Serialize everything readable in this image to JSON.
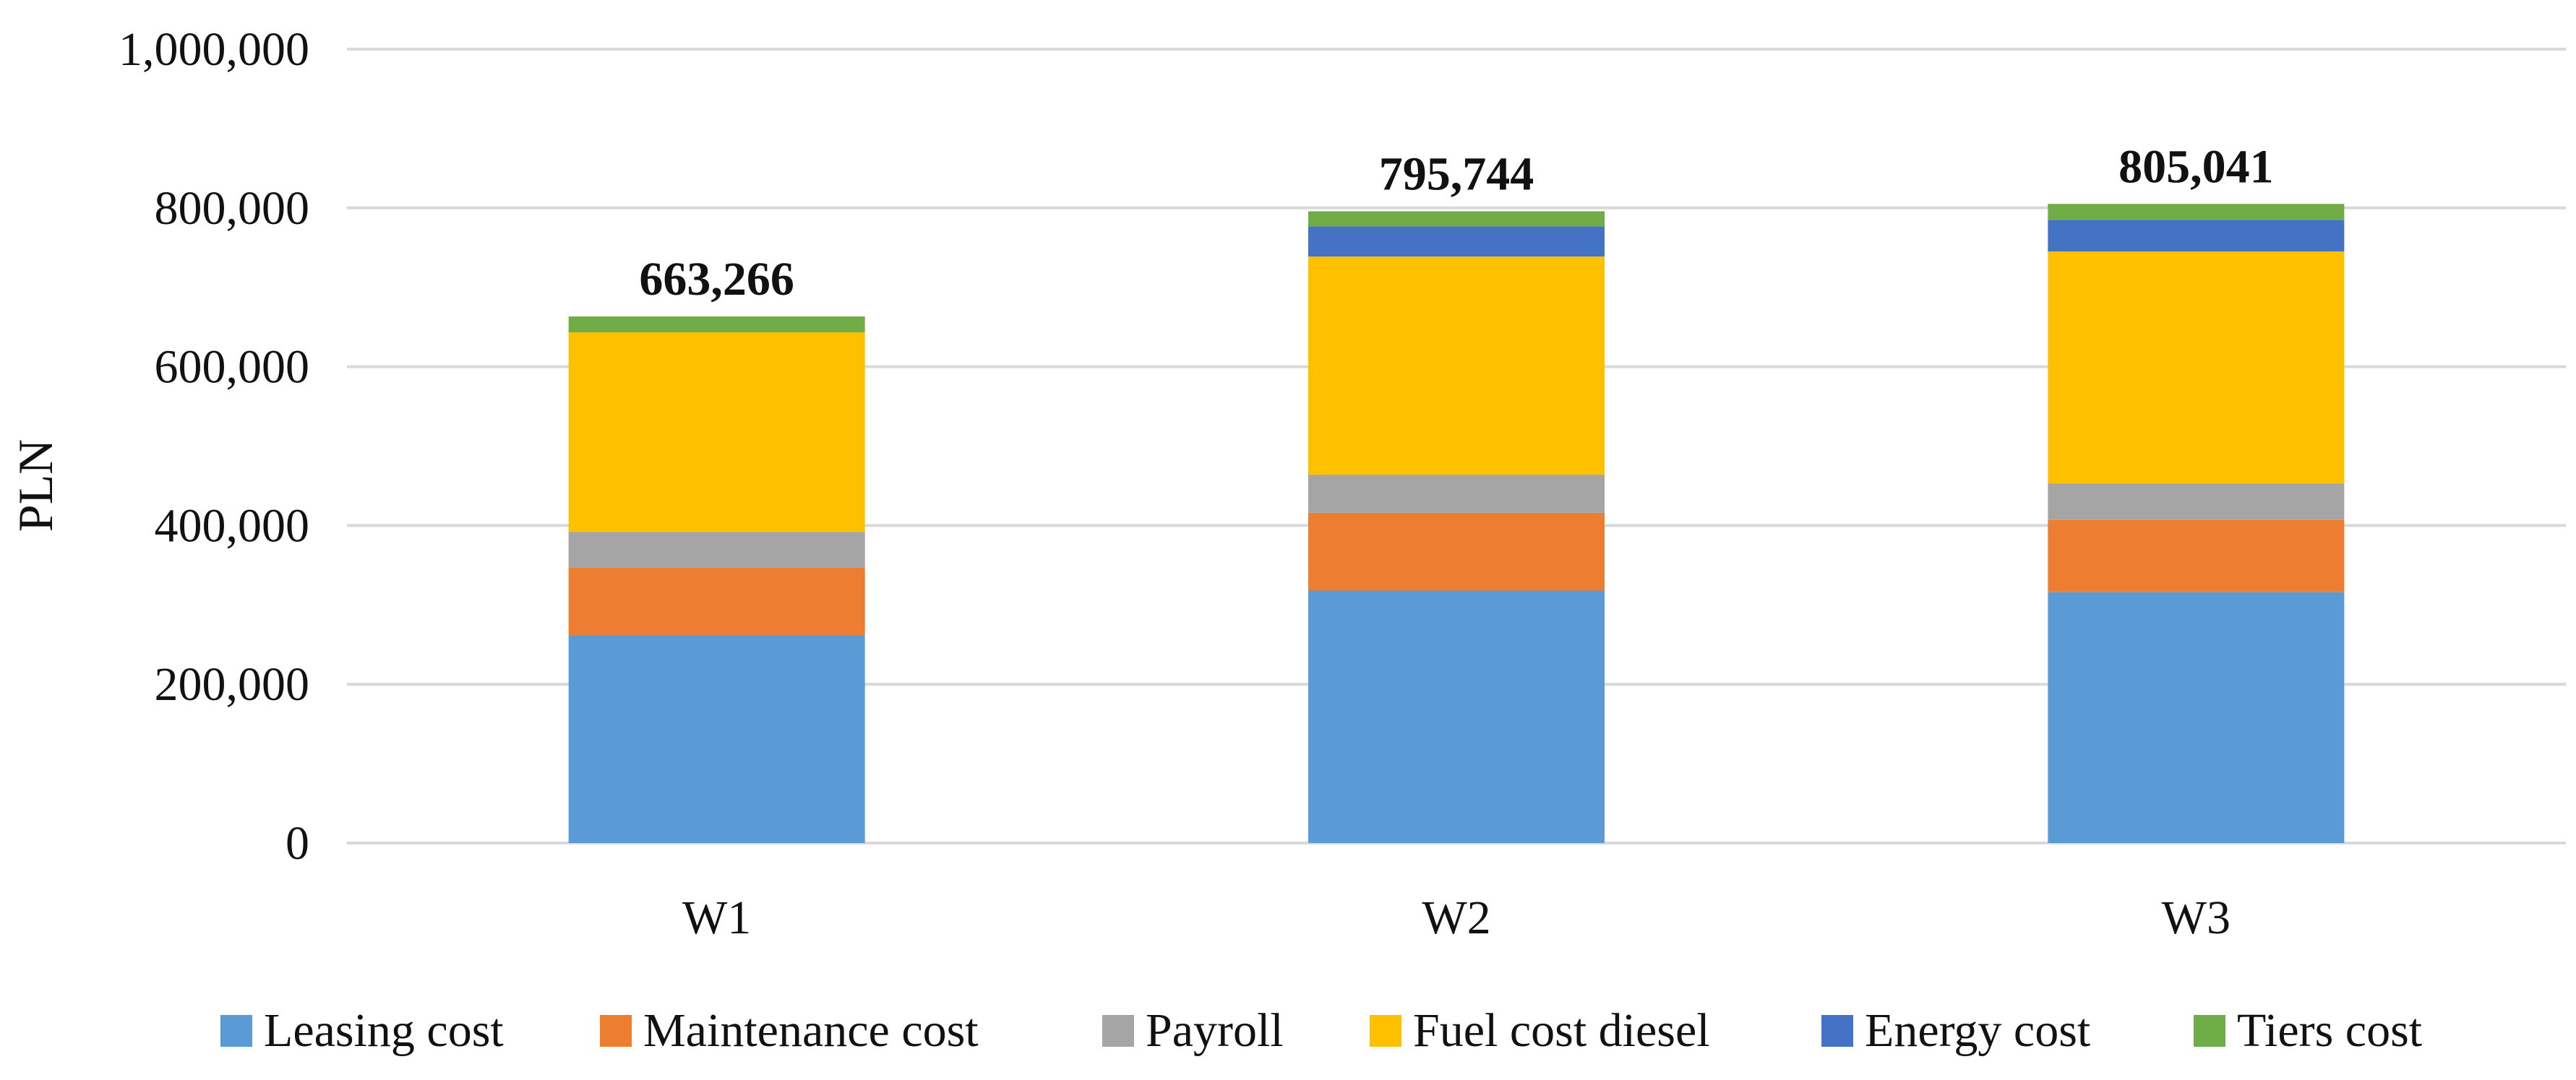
{
  "chart_data": {
    "type": "bar",
    "stacked": true,
    "title": "",
    "xlabel": "",
    "ylabel": "PLN",
    "ylim": [
      0,
      1000000
    ],
    "yticks": [
      0,
      200000,
      400000,
      600000,
      800000,
      1000000
    ],
    "ytick_labels": [
      "0",
      "200,000",
      "400,000",
      "600,000",
      "800,000",
      "1,000,000"
    ],
    "grid": true,
    "legend_position": "bottom",
    "categories": [
      "W1",
      "W2",
      "W3"
    ],
    "totals": [
      663266,
      795744,
      805041
    ],
    "total_labels": [
      "663,266",
      "795,744",
      "805,041"
    ],
    "series": [
      {
        "name": "Leasing cost",
        "color": "#5b9bd5",
        "values": [
          262000,
          318000,
          316000
        ]
      },
      {
        "name": "Maintenance cost",
        "color": "#ed7d31",
        "values": [
          85000,
          98000,
          91000
        ]
      },
      {
        "name": "Payroll",
        "color": "#a5a5a5",
        "values": [
          45000,
          48000,
          46000
        ]
      },
      {
        "name": "Fuel cost diesel",
        "color": "#ffc000",
        "values": [
          251266,
          274744,
          292041
        ]
      },
      {
        "name": "Energy cost",
        "color": "#4472c4",
        "values": [
          0,
          38000,
          40000
        ]
      },
      {
        "name": "Tiers cost",
        "color": "#70ad47",
        "values": [
          20000,
          19000,
          20000
        ]
      }
    ]
  }
}
